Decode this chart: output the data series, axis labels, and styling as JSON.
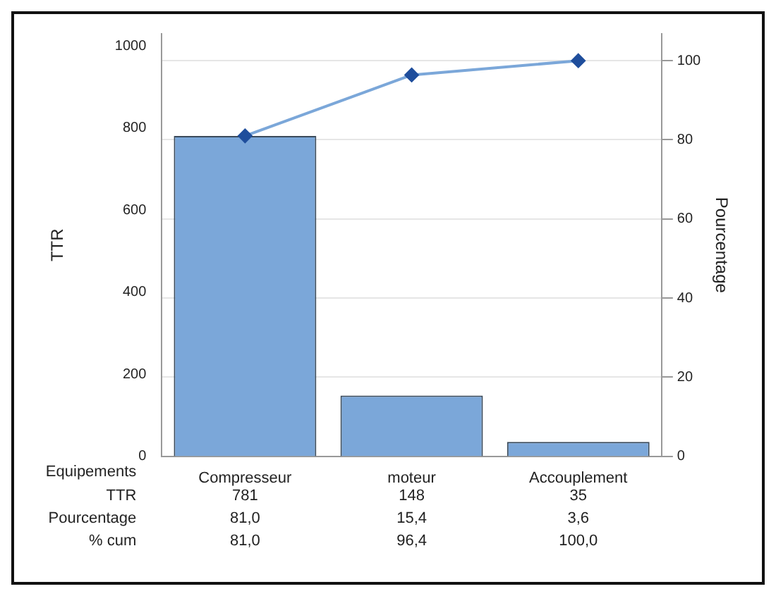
{
  "chart_data": {
    "type": "bar",
    "xlabel": "Equipements",
    "ylabel": "TTR",
    "y2label": "Pourcentage",
    "categories": [
      "Compresseur",
      "moteur",
      "Accouplement"
    ],
    "series": [
      {
        "color": "#7ba7d9",
        "values": [
          781,
          148,
          35
        ],
        "value_labels": [
          "781",
          "148",
          "35"
        ]
      },
      {
        "type": "line",
        "axis": "y2",
        "color": "#7ba7d9",
        "values": [
          81.0,
          96.4,
          100.0
        ],
        "value_labels": [
          "81,0",
          "96,4",
          "100,0"
        ]
      }
    ],
    "annotations": [
      "TTR",
      "Pourcentage",
      "81,0",
      "15,4",
      "3,6",
      "% cum"
    ],
    "ylim": [
      0,
      1030
    ],
    "yticks": [
      0,
      200,
      400,
      600,
      800,
      1000
    ],
    "y2lim": [
      0,
      106.8
    ],
    "y2ticks": [
      0,
      20,
      40,
      60,
      80,
      100
    ],
    "grid": true,
    "legend": false,
    "marker": "diamond",
    "line_style": "solid"
  }
}
